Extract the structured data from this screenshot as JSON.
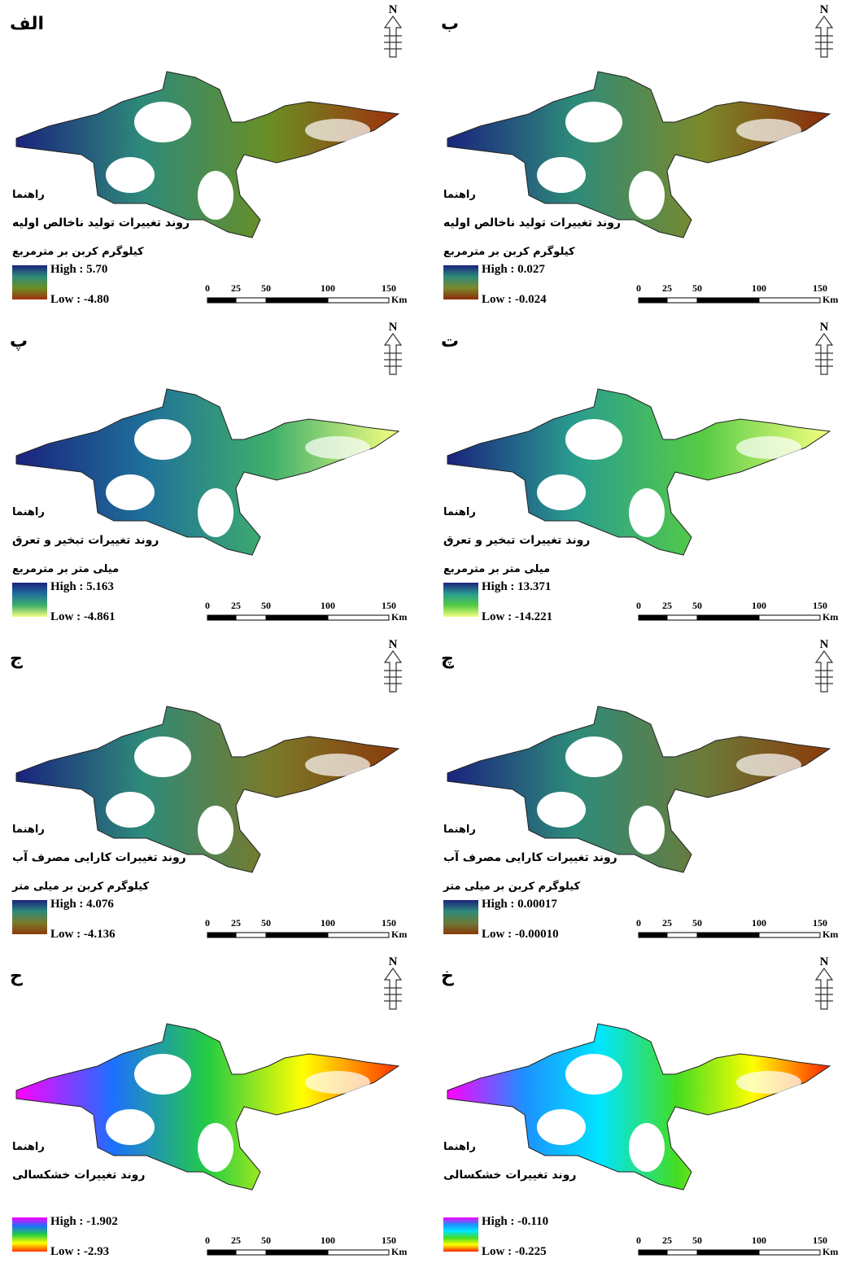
{
  "north": "N",
  "scale_bar": {
    "ticks": [
      "0",
      "25",
      "50",
      "100",
      "150"
    ],
    "unit": "Km"
  },
  "panels": [
    {
      "label": "الف",
      "legend_heading": "راهنما",
      "title": "روند تغییرات تولید ناخالص اولیه",
      "unit": "کیلوگرم کربن بر مترمربع",
      "high": "High : 5.70",
      "low": "Low : -4.80",
      "colors": [
        "#1a237e",
        "#2e8b7a",
        "#6b8e23",
        "#a0300d"
      ]
    },
    {
      "label": "ب",
      "legend_heading": "راهنما",
      "title": "روند تغییرات تولید ناخالص اولیه",
      "unit": "کیلوگرم کربن بر مترمربع",
      "high": "High : 0.027",
      "low": "Low : -0.024",
      "colors": [
        "#1a237e",
        "#2e8b7a",
        "#7a8a2a",
        "#8b2a0a"
      ]
    },
    {
      "label": "پ",
      "legend_heading": "راهنما",
      "title": "روند تغییرات تبخیر و تعرق",
      "unit": "میلی متر بر مترمربع",
      "high": "High : 5.163",
      "low": "Low : -4.861",
      "colors": [
        "#1a237e",
        "#1f6f9a",
        "#3fb06a",
        "#f5ff80"
      ]
    },
    {
      "label": "ت",
      "legend_heading": "راهنما",
      "title": "روند تغییرات تبخیر و تعرق",
      "unit": "میلی متر بر مترمربع",
      "high": "High : 13.371",
      "low": "Low : -14.221",
      "colors": [
        "#1a237e",
        "#2a9d8f",
        "#55cc44",
        "#f5ff80"
      ]
    },
    {
      "label": "ج",
      "legend_heading": "راهنما",
      "title": "روند تغییرات کارایی مصرف آب",
      "unit": "کیلوگرم کربن بر میلی متر",
      "high": "High : 4.076",
      "low": "Low : -4.136",
      "colors": [
        "#1a237e",
        "#2e8b7a",
        "#7a7a2a",
        "#8b3a0a"
      ]
    },
    {
      "label": "چ",
      "legend_heading": "راهنما",
      "title": "روند تغییرات کارایی مصرف آب",
      "unit": "کیلوگرم کربن بر میلی متر",
      "high": "High : 0.00017",
      "low": "Low : -0.00010",
      "colors": [
        "#1a237e",
        "#2e8b7a",
        "#6b7b3a",
        "#8b3a0a"
      ]
    },
    {
      "label": "ح",
      "legend_heading": "راهنما",
      "title": "روند تغییرات خشکسالی",
      "high": "High : -1.902",
      "low": "Low : -2.93",
      "colors": [
        "#ff00ff",
        "#1e6fff",
        "#22cc44",
        "#ffff00",
        "#ff3300"
      ]
    },
    {
      "label": "خ",
      "legend_heading": "راهنما",
      "title": "روند تغییرات خشکسالی",
      "high": "High : -0.110",
      "low": "Low : -0.225",
      "colors": [
        "#ff00ff",
        "#1e90ff",
        "#00e5ff",
        "#44dd22",
        "#ffff00",
        "#ff2200"
      ]
    }
  ]
}
